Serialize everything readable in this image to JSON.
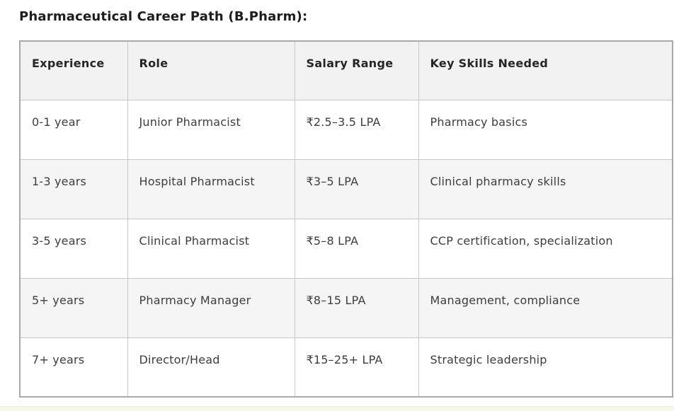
{
  "page": {
    "title": "Pharmaceutical Career Path (B.Pharm):"
  },
  "table": {
    "columns": [
      "Experience",
      "Role",
      "Salary Range",
      "Key Skills Needed"
    ],
    "rows": [
      [
        "0-1 year",
        "Junior Pharmacist",
        "₹2.5–3.5 LPA",
        "Pharmacy basics"
      ],
      [
        "1-3 years",
        "Hospital Pharmacist",
        "₹3–5 LPA",
        "Clinical pharmacy skills"
      ],
      [
        "3-5 years",
        "Clinical Pharmacist",
        "₹5–8 LPA",
        "CCP certification, specialization"
      ],
      [
        "5+ years",
        "Pharmacy Manager",
        "₹8–15 LPA",
        "Management, compliance"
      ],
      [
        "7+ years",
        "Director/Head",
        "₹15–25+ LPA",
        "Strategic leadership"
      ]
    ]
  },
  "colors": {
    "title_text": "#1d1d1d",
    "header_bg": "#f2f2f2",
    "stripe_bg": "#f5f5f5",
    "body_text": "#3d3d3d",
    "border_inner": "#c8c8c8",
    "border_outer": "#a9a9a9",
    "bottom_bar_bg": "#f7f8ea"
  }
}
